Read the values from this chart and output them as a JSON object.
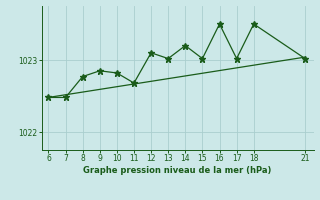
{
  "x": [
    6,
    7,
    8,
    9,
    10,
    11,
    12,
    13,
    14,
    15,
    16,
    17,
    18,
    21
  ],
  "y": [
    1022.48,
    1022.48,
    1022.77,
    1022.85,
    1022.82,
    1022.68,
    1023.1,
    1023.02,
    1023.2,
    1023.02,
    1023.5,
    1023.02,
    1023.5,
    1023.02
  ],
  "trend_x": [
    6,
    21
  ],
  "trend_y": [
    1022.48,
    1023.04
  ],
  "bg_color": "#cce8e8",
  "line_color": "#1a5c1a",
  "grid_color": "#aacece",
  "xlabel": "Graphe pression niveau de la mer (hPa)",
  "yticks": [
    1022,
    1023
  ],
  "xticks": [
    6,
    7,
    8,
    9,
    10,
    11,
    12,
    13,
    14,
    15,
    16,
    17,
    18,
    21
  ],
  "ylim": [
    1021.75,
    1023.75
  ],
  "xlim": [
    5.6,
    21.5
  ]
}
